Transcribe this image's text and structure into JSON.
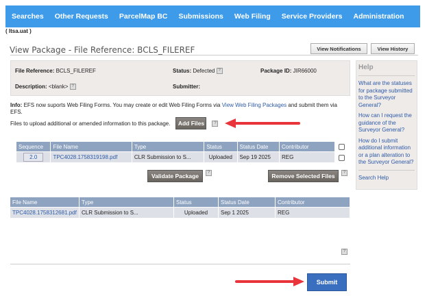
{
  "nav": [
    "Searches",
    "Other Requests",
    "ParcelMap BC",
    "Submissions",
    "Web Filing",
    "Service Providers",
    "Administration"
  ],
  "env": "( ltsa.uat )",
  "title": "View Package - File Reference: BCLS_FILEREF",
  "buttons": {
    "view_notifications": "View Notifications",
    "view_history": "View History",
    "add_files": "Add Files",
    "validate": "Validate Package",
    "remove": "Remove Selected Files",
    "submit": "Submit"
  },
  "info": {
    "file_ref_label": "File Reference:",
    "file_ref": "BCLS_FILEREF",
    "status_label": "Status:",
    "status": "Defected",
    "package_label": "Package ID:",
    "package_id": "JIR66000",
    "desc_label": "Description:",
    "desc": "<blank>",
    "submitter_label": "Submitter:",
    "help_icon": "?"
  },
  "notice": {
    "prefix": "Info:",
    "text1": "EFS now suports Web Filing Forms. You may create or edit Web Filing Forms via",
    "link": "View Web Filing Packages",
    "text2": "and submit them via EFS."
  },
  "upload_text": "Files to upload additional or amended information to this package.",
  "help": {
    "title": "Help",
    "links": [
      "What are the statuses for package submitted to the Surveyor General?",
      "How can I request the guidance of the Surveyor General?",
      "How do I submit additional information or a plan alteration to the Surveyor General?",
      "Search Help"
    ]
  },
  "table1": {
    "headers": [
      "Sequence",
      "File Name",
      "Type",
      "Status",
      "Status Date",
      "Contributor"
    ],
    "rows": [
      {
        "seq": "2.0",
        "file": "TPC4028.1758319198.pdf",
        "type": "CLR Submission to S...",
        "status": "Uploaded",
        "date": "Sep 19 2025",
        "contrib": "REG"
      }
    ]
  },
  "table2": {
    "headers": [
      "File Name",
      "Type",
      "Status",
      "Status Date",
      "Contributor"
    ],
    "rows": [
      {
        "file": "TPC4028.1758312681.pdf",
        "type": "CLR Submission to S...",
        "status": "Uploaded",
        "date": "Sep 1 2025",
        "contrib": "REG"
      }
    ]
  },
  "colors": {
    "nav": "#3d9be9",
    "submit": "#3a6fc0",
    "arrow": "#e8343a"
  }
}
